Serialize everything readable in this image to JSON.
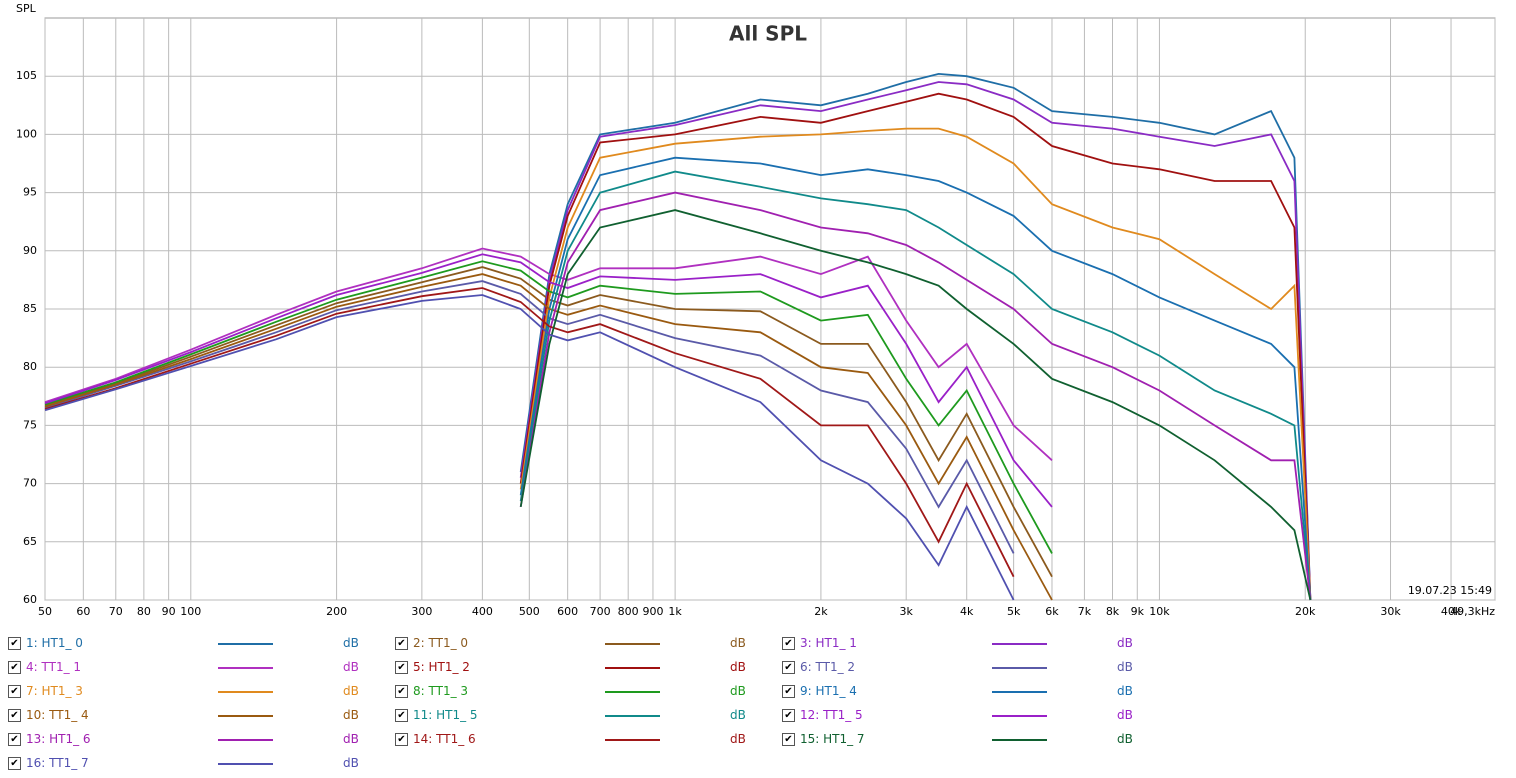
{
  "chart_data": {
    "type": "line",
    "title": "All SPL",
    "y_label": "SPL",
    "timestamp": "19.07.23 15:49",
    "log_x": true,
    "grid": true,
    "xlim": [
      50,
      49300
    ],
    "ylim": [
      60,
      110
    ],
    "xticks": [
      50,
      60,
      70,
      80,
      90,
      100,
      200,
      300,
      400,
      500,
      600,
      700,
      800,
      900,
      {
        "value": 1000,
        "label": "1k"
      },
      {
        "value": 2000,
        "label": "2k"
      },
      {
        "value": 3000,
        "label": "3k"
      },
      {
        "value": 4000,
        "label": "4k"
      },
      {
        "value": 5000,
        "label": "5k"
      },
      {
        "value": 6000,
        "label": "6k"
      },
      {
        "value": 7000,
        "label": "7k"
      },
      {
        "value": 8000,
        "label": "8k"
      },
      {
        "value": 9000,
        "label": "9k"
      },
      {
        "value": 10000,
        "label": "10k"
      },
      {
        "value": 20000,
        "label": "20k"
      },
      {
        "value": 30000,
        "label": "30k"
      },
      {
        "value": 40000,
        "label": "40k"
      },
      {
        "value": 49300,
        "label": "49,3kHz"
      }
    ],
    "yticks": [
      60,
      65,
      70,
      75,
      80,
      85,
      90,
      95,
      100,
      105
    ],
    "x": [
      50,
      70,
      100,
      150,
      200,
      300,
      400,
      480,
      550,
      600,
      700,
      1000,
      1500,
      2000,
      2500,
      3000,
      3500,
      4000,
      5000,
      6000,
      8000,
      10000,
      13000,
      17000,
      19000,
      20500
    ],
    "series": [
      {
        "name": "1: HT1_ 0",
        "unit": "dB",
        "color": "#1f6ea6",
        "values": [
          null,
          null,
          null,
          null,
          null,
          null,
          null,
          71,
          88,
          94,
          100,
          101,
          103,
          102.5,
          103.5,
          104.5,
          105.2,
          105,
          104,
          102,
          101.5,
          101,
          100,
          102,
          98,
          60
        ]
      },
      {
        "name": "2: TT1_ 0",
        "unit": "dB",
        "color": "#8b5a1e",
        "values": [
          76.7,
          78.6,
          80.9,
          83.6,
          85.5,
          87.3,
          88.6,
          87.6,
          85.8,
          85.3,
          86.2,
          85,
          84.8,
          82,
          82,
          77,
          72,
          76,
          68,
          62,
          null,
          null,
          null,
          null,
          null,
          null
        ]
      },
      {
        "name": "3: HT1_ 1",
        "unit": "dB",
        "color": "#8a2bc4",
        "values": [
          null,
          null,
          null,
          null,
          null,
          null,
          null,
          70.5,
          87.5,
          93.5,
          99.8,
          100.8,
          102.5,
          102,
          103,
          103.8,
          104.5,
          104.3,
          103,
          101,
          100.5,
          99.8,
          99,
          100,
          96,
          60
        ]
      },
      {
        "name": "4: TT1_ 1",
        "unit": "dB",
        "color": "#b030c0",
        "values": [
          77,
          79,
          81.5,
          84.5,
          86.5,
          88.5,
          90.2,
          89.5,
          88,
          87.5,
          88.5,
          88.5,
          89.5,
          88,
          89.5,
          84,
          80,
          82,
          75,
          72,
          null,
          null,
          null,
          null,
          null,
          null
        ]
      },
      {
        "name": "5: HT1_ 2",
        "unit": "dB",
        "color": "#a01010",
        "values": [
          null,
          null,
          null,
          null,
          null,
          null,
          null,
          70,
          87,
          93,
          99.3,
          100,
          101.5,
          101,
          102,
          102.8,
          103.5,
          103,
          101.5,
          99,
          97.5,
          97,
          96,
          96,
          92,
          60
        ]
      },
      {
        "name": "6: TT1_ 2",
        "unit": "dB",
        "color": "#5a5aa8",
        "values": [
          76.5,
          78.4,
          80.5,
          83,
          84.9,
          86.5,
          87.4,
          86.3,
          84.2,
          83.7,
          84.5,
          82.5,
          81,
          78,
          77,
          73,
          68,
          72,
          64,
          null,
          null,
          null,
          null,
          null,
          null,
          null
        ]
      },
      {
        "name": "7: HT1_ 3",
        "unit": "dB",
        "color": "#e08a1e",
        "values": [
          null,
          null,
          null,
          null,
          null,
          null,
          null,
          69.5,
          86,
          92,
          98,
          99.2,
          99.8,
          100,
          100.3,
          100.5,
          100.5,
          99.8,
          97.5,
          94,
          92,
          91,
          88,
          85,
          87,
          60
        ]
      },
      {
        "name": "8: TT1_ 3",
        "unit": "dB",
        "color": "#1e9a1e",
        "values": [
          76.8,
          78.7,
          81.1,
          83.9,
          85.8,
          87.7,
          89.1,
          88.3,
          86.5,
          86,
          87,
          86.3,
          86.5,
          84,
          84.5,
          79,
          75,
          78,
          70,
          64,
          null,
          null,
          null,
          null,
          null,
          null
        ]
      },
      {
        "name": "9: HT1_ 4",
        "unit": "dB",
        "color": "#1a6fb0",
        "values": [
          null,
          null,
          null,
          null,
          null,
          null,
          null,
          69,
          85,
          91,
          96.5,
          98,
          97.5,
          96.5,
          97,
          96.5,
          96,
          95,
          93,
          90,
          88,
          86,
          84,
          82,
          80,
          60
        ]
      },
      {
        "name": "10: TT1_ 4",
        "unit": "dB",
        "color": "#9a5a10",
        "values": [
          76.6,
          78.5,
          80.7,
          83.3,
          85.2,
          86.9,
          88,
          87,
          85,
          84.5,
          85.3,
          83.7,
          83,
          80,
          79.5,
          75,
          70,
          74,
          66,
          60,
          null,
          null,
          null,
          null,
          null,
          null
        ]
      },
      {
        "name": "11: HT1_ 5",
        "unit": "dB",
        "color": "#108a8a",
        "values": [
          null,
          null,
          null,
          null,
          null,
          null,
          null,
          68.5,
          84,
          90,
          95,
          96.8,
          95.5,
          94.5,
          94,
          93.5,
          92,
          90.5,
          88,
          85,
          83,
          81,
          78,
          76,
          75,
          60
        ]
      },
      {
        "name": "12: TT1_ 5",
        "unit": "dB",
        "color": "#9a20c8",
        "values": [
          76.9,
          78.9,
          81.3,
          84.2,
          86.2,
          88.1,
          89.7,
          89,
          87.3,
          86.8,
          87.8,
          87.5,
          88,
          86,
          87,
          82,
          77,
          80,
          72,
          68,
          null,
          null,
          null,
          null,
          null,
          null
        ]
      },
      {
        "name": "13: HT1_ 6",
        "unit": "dB",
        "color": "#a020b0",
        "values": [
          null,
          null,
          null,
          null,
          null,
          null,
          null,
          68,
          83,
          89,
          93.5,
          95,
          93.5,
          92,
          91.5,
          90.5,
          89,
          87.5,
          85,
          82,
          80,
          78,
          75,
          72,
          72,
          60
        ]
      },
      {
        "name": "14: TT1_ 6",
        "unit": "dB",
        "color": "#a01818",
        "values": [
          76.4,
          78.2,
          80.3,
          82.7,
          84.6,
          86.1,
          86.8,
          85.6,
          83.5,
          83,
          83.7,
          81.2,
          79,
          75,
          75,
          70,
          65,
          70,
          62,
          null,
          null,
          null,
          null,
          null,
          null,
          null
        ]
      },
      {
        "name": "15: HT1_ 7",
        "unit": "dB",
        "color": "#106030",
        "values": [
          null,
          null,
          null,
          null,
          null,
          null,
          null,
          68,
          82,
          88,
          92,
          93.5,
          91.5,
          90,
          89,
          88,
          87,
          85,
          82,
          79,
          77,
          75,
          72,
          68,
          66,
          60
        ]
      },
      {
        "name": "16: TT1_ 7",
        "unit": "dB",
        "color": "#5050b0",
        "values": [
          76.3,
          78.1,
          80.1,
          82.4,
          84.3,
          85.7,
          86.2,
          85,
          82.8,
          82.3,
          83,
          80,
          77,
          72,
          70,
          67,
          63,
          68,
          60,
          null,
          null,
          null,
          null,
          null,
          null,
          null
        ]
      }
    ]
  }
}
